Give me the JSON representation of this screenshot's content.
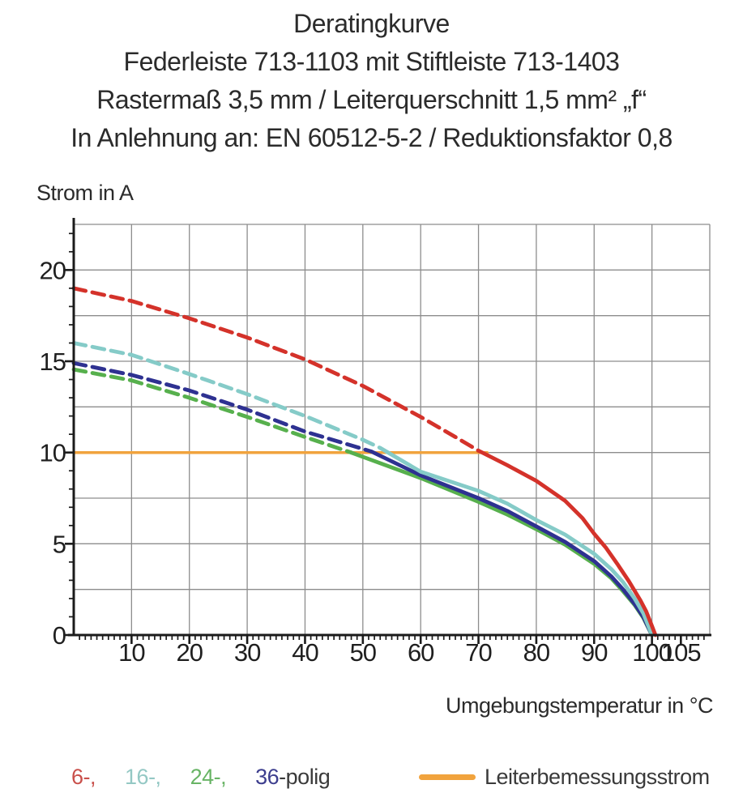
{
  "header": {
    "lines": [
      "Deratingkurve",
      "Federleiste 713-1103 mit Stiftleiste 713-1403",
      "Rastermaß 3,5 mm / Leiterquerschnitt 1,5 mm² „f“",
      "In Anlehnung an: EN 60512-5-2 / Reduktionsfaktor 0,8"
    ]
  },
  "axes": {
    "y_title": "Strom in A",
    "x_title": "Umgebungstemperatur in °C"
  },
  "legend": {
    "poles": [
      {
        "label": "6-,",
        "color": "#c9504b"
      },
      {
        "label": "16-,",
        "color": "#94c8c4"
      },
      {
        "label": "24-,",
        "color": "#68b465"
      },
      {
        "label": "36",
        "color": "#3d3e8e"
      }
    ],
    "poles_suffix": {
      "label": "-polig",
      "color": "#3a3a3a"
    },
    "limit": {
      "label": "Leiterbemessungsstrom",
      "swatch_color": "#f1a33d",
      "text_color": "#3a3a3a"
    }
  },
  "chart_data": {
    "type": "line",
    "title": "Deratingkurve",
    "xlabel": "Umgebungstemperatur in °C",
    "ylabel": "Strom in A",
    "xlim": [
      0,
      110
    ],
    "ylim": [
      0,
      22.5
    ],
    "grid": {
      "x_step": 10,
      "y_step": 2.5,
      "color": "#8d8d8d"
    },
    "x_major_ticks": [
      10,
      20,
      30,
      40,
      50,
      60,
      70,
      80,
      90,
      100,
      105
    ],
    "y_major_ticks": [
      0,
      5,
      10,
      15,
      20
    ],
    "x_minor": {
      "step": 1,
      "from": 1,
      "to": 109
    },
    "y_minor": {
      "step": 1,
      "from": 1,
      "to": 22
    },
    "axis_color": "#1b1b1b",
    "legend_position": "bottom",
    "note": "dashed = above Leiterbemessungsstrom (10 A rated current), solid = derated region; series listed in draw order (back to front)",
    "series": [
      {
        "name": "Leiterbemessungsstrom",
        "role": "limit-line",
        "color": "#f1a33d",
        "width": 3.5,
        "segments": [
          {
            "style": "solid",
            "points": [
              [
                0,
                10
              ],
              [
                71.5,
                10
              ]
            ]
          }
        ]
      },
      {
        "name": "24-polig",
        "color": "#57b04d",
        "width": 4.8,
        "segments": [
          {
            "style": "dashed",
            "points": [
              [
                0,
                14.55
              ],
              [
                10,
                13.95
              ],
              [
                20,
                13.0
              ],
              [
                30,
                11.95
              ],
              [
                40,
                10.85
              ],
              [
                48,
                10.0
              ]
            ]
          },
          {
            "style": "solid",
            "points": [
              [
                48,
                10.0
              ],
              [
                60,
                8.6
              ],
              [
                70,
                7.3
              ],
              [
                75,
                6.6
              ],
              [
                80,
                5.8
              ],
              [
                85,
                4.95
              ],
              [
                90,
                3.9
              ],
              [
                93,
                3.1
              ],
              [
                95,
                2.4
              ],
              [
                97,
                1.65
              ],
              [
                98.5,
                0.95
              ],
              [
                100,
                0
              ]
            ]
          }
        ]
      },
      {
        "name": "36-polig",
        "color": "#2e3191",
        "width": 4.8,
        "segments": [
          {
            "style": "dashed",
            "points": [
              [
                0,
                14.9
              ],
              [
                10,
                14.25
              ],
              [
                20,
                13.4
              ],
              [
                30,
                12.35
              ],
              [
                40,
                11.15
              ],
              [
                50,
                10.2
              ],
              [
                51.5,
                10.05
              ]
            ]
          },
          {
            "style": "solid",
            "points": [
              [
                51.5,
                10.05
              ],
              [
                60,
                8.75
              ],
              [
                70,
                7.5
              ],
              [
                75,
                6.8
              ],
              [
                80,
                5.95
              ],
              [
                85,
                5.1
              ],
              [
                90,
                4.05
              ],
              [
                93,
                3.2
              ],
              [
                95,
                2.5
              ],
              [
                97,
                1.7
              ],
              [
                98.5,
                1.0
              ],
              [
                100,
                0
              ]
            ]
          }
        ]
      },
      {
        "name": "16-polig",
        "color": "#85cbc8",
        "width": 4.8,
        "segments": [
          {
            "style": "dashed",
            "points": [
              [
                0,
                16.0
              ],
              [
                10,
                15.35
              ],
              [
                20,
                14.3
              ],
              [
                30,
                13.2
              ],
              [
                40,
                12.0
              ],
              [
                50,
                10.7
              ],
              [
                53,
                10.25
              ]
            ]
          },
          {
            "style": "solid",
            "points": [
              [
                53,
                10.25
              ],
              [
                60,
                8.95
              ],
              [
                70,
                7.9
              ],
              [
                75,
                7.2
              ],
              [
                80,
                6.3
              ],
              [
                85,
                5.5
              ],
              [
                90,
                4.45
              ],
              [
                93,
                3.6
              ],
              [
                95,
                2.9
              ],
              [
                97,
                2.0
              ],
              [
                98.5,
                1.2
              ],
              [
                100,
                0
              ]
            ]
          }
        ]
      },
      {
        "name": "6-polig",
        "color": "#d4322a",
        "width": 4.8,
        "segments": [
          {
            "style": "dashed",
            "points": [
              [
                0,
                19.0
              ],
              [
                10,
                18.3
              ],
              [
                20,
                17.35
              ],
              [
                30,
                16.3
              ],
              [
                40,
                15.1
              ],
              [
                50,
                13.65
              ],
              [
                60,
                11.95
              ],
              [
                66,
                10.85
              ],
              [
                70,
                10.1
              ]
            ]
          },
          {
            "style": "solid",
            "points": [
              [
                70,
                10.1
              ],
              [
                75,
                9.3
              ],
              [
                80,
                8.45
              ],
              [
                85,
                7.35
              ],
              [
                88,
                6.4
              ],
              [
                90,
                5.55
              ],
              [
                92,
                4.8
              ],
              [
                94,
                3.9
              ],
              [
                96,
                2.95
              ],
              [
                98,
                1.9
              ],
              [
                99,
                1.3
              ],
              [
                100,
                0.5
              ],
              [
                100.6,
                0
              ]
            ]
          }
        ]
      }
    ]
  }
}
